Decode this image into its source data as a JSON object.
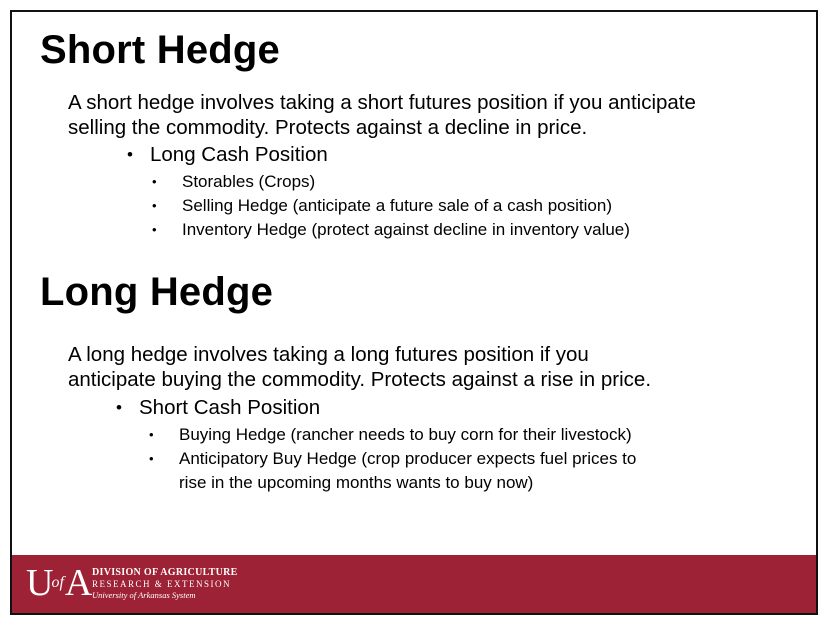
{
  "section1": {
    "title": "Short Hedge",
    "paragraph_line1": "A short hedge involves taking a short futures position if you anticipate",
    "paragraph_line2": "selling the commodity. Protects against a decline in price.",
    "bullet": "Long Cash Position",
    "subbullets": [
      "Storables (Crops)",
      "Selling Hedge (anticipate a future sale of a cash position)",
      "Inventory Hedge (protect against decline in inventory value)"
    ]
  },
  "section2": {
    "title": "Long Hedge",
    "paragraph_line1": "A long hedge involves taking a long futures position if you",
    "paragraph_line2": "anticipate buying the commodity. Protects against a rise in price.",
    "bullet": "Short Cash Position",
    "subbullets": [
      "Buying Hedge (rancher needs to buy corn for their livestock)",
      "Anticipatory Buy Hedge (crop producer expects fuel prices to",
      "rise in the upcoming months wants to buy now)"
    ]
  },
  "footer": {
    "logo_mark_left": "U",
    "logo_mark_mid": "of",
    "logo_mark_right": "A",
    "line1": "DIVISION OF AGRICULTURE",
    "line2": "RESEARCH & EXTENSION",
    "line3": "University of Arkansas System",
    "bar_color": "#9d2235"
  },
  "bullet_glyphs": {
    "level1": "•",
    "level2": "•"
  }
}
